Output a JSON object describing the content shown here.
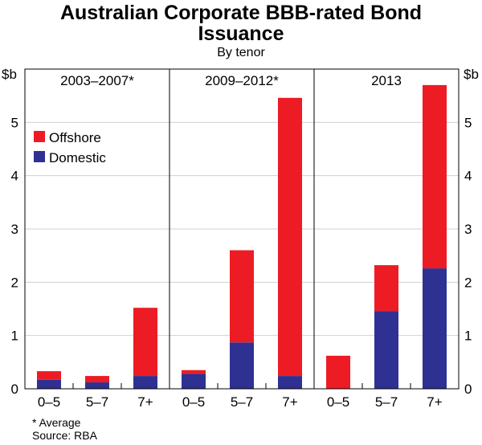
{
  "chart_data": {
    "type": "bar",
    "stacked": true,
    "title": "Australian Corporate BBB-rated Bond Issuance",
    "subtitle": "By tenor",
    "ylabel": "$b",
    "ylim": [
      0,
      6
    ],
    "yticks": [
      0,
      1,
      2,
      3,
      4,
      5
    ],
    "grid": true,
    "legend_placement": "top-left",
    "panels": [
      {
        "label": "2003–2007*",
        "categories": [
          "0–5",
          "5–7",
          "7+"
        ],
        "series": [
          {
            "name": "Domestic",
            "values": [
              0.17,
              0.12,
              0.24
            ]
          },
          {
            "name": "Offshore",
            "values": [
              0.16,
              0.12,
              1.28
            ]
          }
        ]
      },
      {
        "label": "2009–2012*",
        "categories": [
          "0–5",
          "5–7",
          "7+"
        ],
        "series": [
          {
            "name": "Domestic",
            "values": [
              0.28,
              0.87,
              0.24
            ]
          },
          {
            "name": "Offshore",
            "values": [
              0.07,
              1.73,
              5.22
            ]
          }
        ]
      },
      {
        "label": "2013",
        "categories": [
          "0–5",
          "5–7",
          "7+"
        ],
        "series": [
          {
            "name": "Domestic",
            "values": [
              0,
              1.46,
              2.26
            ]
          },
          {
            "name": "Offshore",
            "values": [
              0.62,
              0.86,
              3.44
            ]
          }
        ]
      }
    ],
    "legend": [
      {
        "name": "Offshore",
        "color": "#ED1C24"
      },
      {
        "name": "Domestic",
        "color": "#2E3192"
      }
    ],
    "colors": {
      "Offshore": "#ED1C24",
      "Domestic": "#2E3192"
    }
  },
  "title_line1": "Australian Corporate BBB-rated Bond",
  "title_line2": "Issuance",
  "subtitle": "By tenor",
  "footnote": "*   Average",
  "source": "Source: RBA"
}
